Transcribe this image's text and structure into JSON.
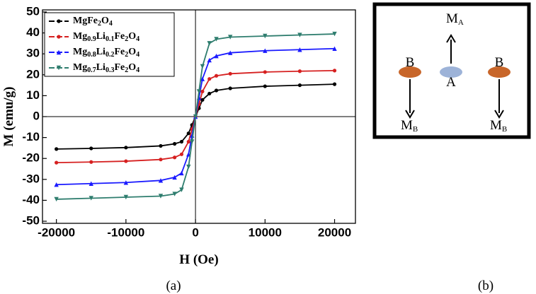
{
  "chart_data": {
    "type": "line",
    "xlabel": "H (Oe)",
    "ylabel": "M (emu/g)",
    "x": [
      -20000,
      -15000,
      -10000,
      -5000,
      -3000,
      -2000,
      -1000,
      -500,
      0,
      500,
      1000,
      2000,
      3000,
      5000,
      10000,
      15000,
      20000
    ],
    "series": [
      {
        "name": "MgFe2O4",
        "color": "#000000",
        "marker": "circle",
        "values": [
          -15.5,
          -15.2,
          -14.8,
          -14,
          -13,
          -12,
          -8,
          -4,
          0,
          4,
          8,
          11,
          12.5,
          13.5,
          14.5,
          15,
          15.5
        ]
      },
      {
        "name": "Mg0.9Li0.1Fe2O4",
        "color": "#d62020",
        "marker": "circle",
        "values": [
          -22,
          -21.7,
          -21.3,
          -20.5,
          -19.5,
          -18,
          -12,
          -6,
          0,
          6,
          12,
          18,
          19.5,
          20.5,
          21.3,
          21.7,
          22
        ]
      },
      {
        "name": "Mg0.8Li0.2Fe2O4",
        "color": "#1a1aff",
        "marker": "triangle-up",
        "values": [
          -32.5,
          -32,
          -31.5,
          -30.5,
          -29,
          -27,
          -18,
          -9,
          0,
          9,
          18,
          27,
          29,
          30.5,
          31.5,
          32,
          32.5
        ]
      },
      {
        "name": "Mg0.7Li0.3Fe2O4",
        "color": "#2e7d6e",
        "marker": "triangle-down",
        "values": [
          -39.5,
          -39,
          -38.5,
          -38,
          -37,
          -35,
          -24,
          -12,
          0,
          12,
          24,
          35,
          37,
          38,
          38.5,
          39,
          39.5
        ]
      }
    ],
    "xlim": [
      -22000,
      23000
    ],
    "ylim": [
      -51,
      51
    ],
    "xticks": [
      -20000,
      -10000,
      0,
      10000,
      20000
    ],
    "yticks": [
      -50,
      -40,
      -30,
      -20,
      -10,
      0,
      10,
      20,
      30,
      40,
      50
    ],
    "zero_lines": true,
    "legend": "upper left"
  },
  "captions": [
    "(a)",
    "(b)"
  ],
  "diagram": {
    "site_labels": [
      "B",
      "A",
      "B"
    ],
    "moment_labels": [
      [
        "M",
        "A"
      ],
      [
        "M",
        "B"
      ],
      [
        "M",
        "B"
      ]
    ]
  }
}
